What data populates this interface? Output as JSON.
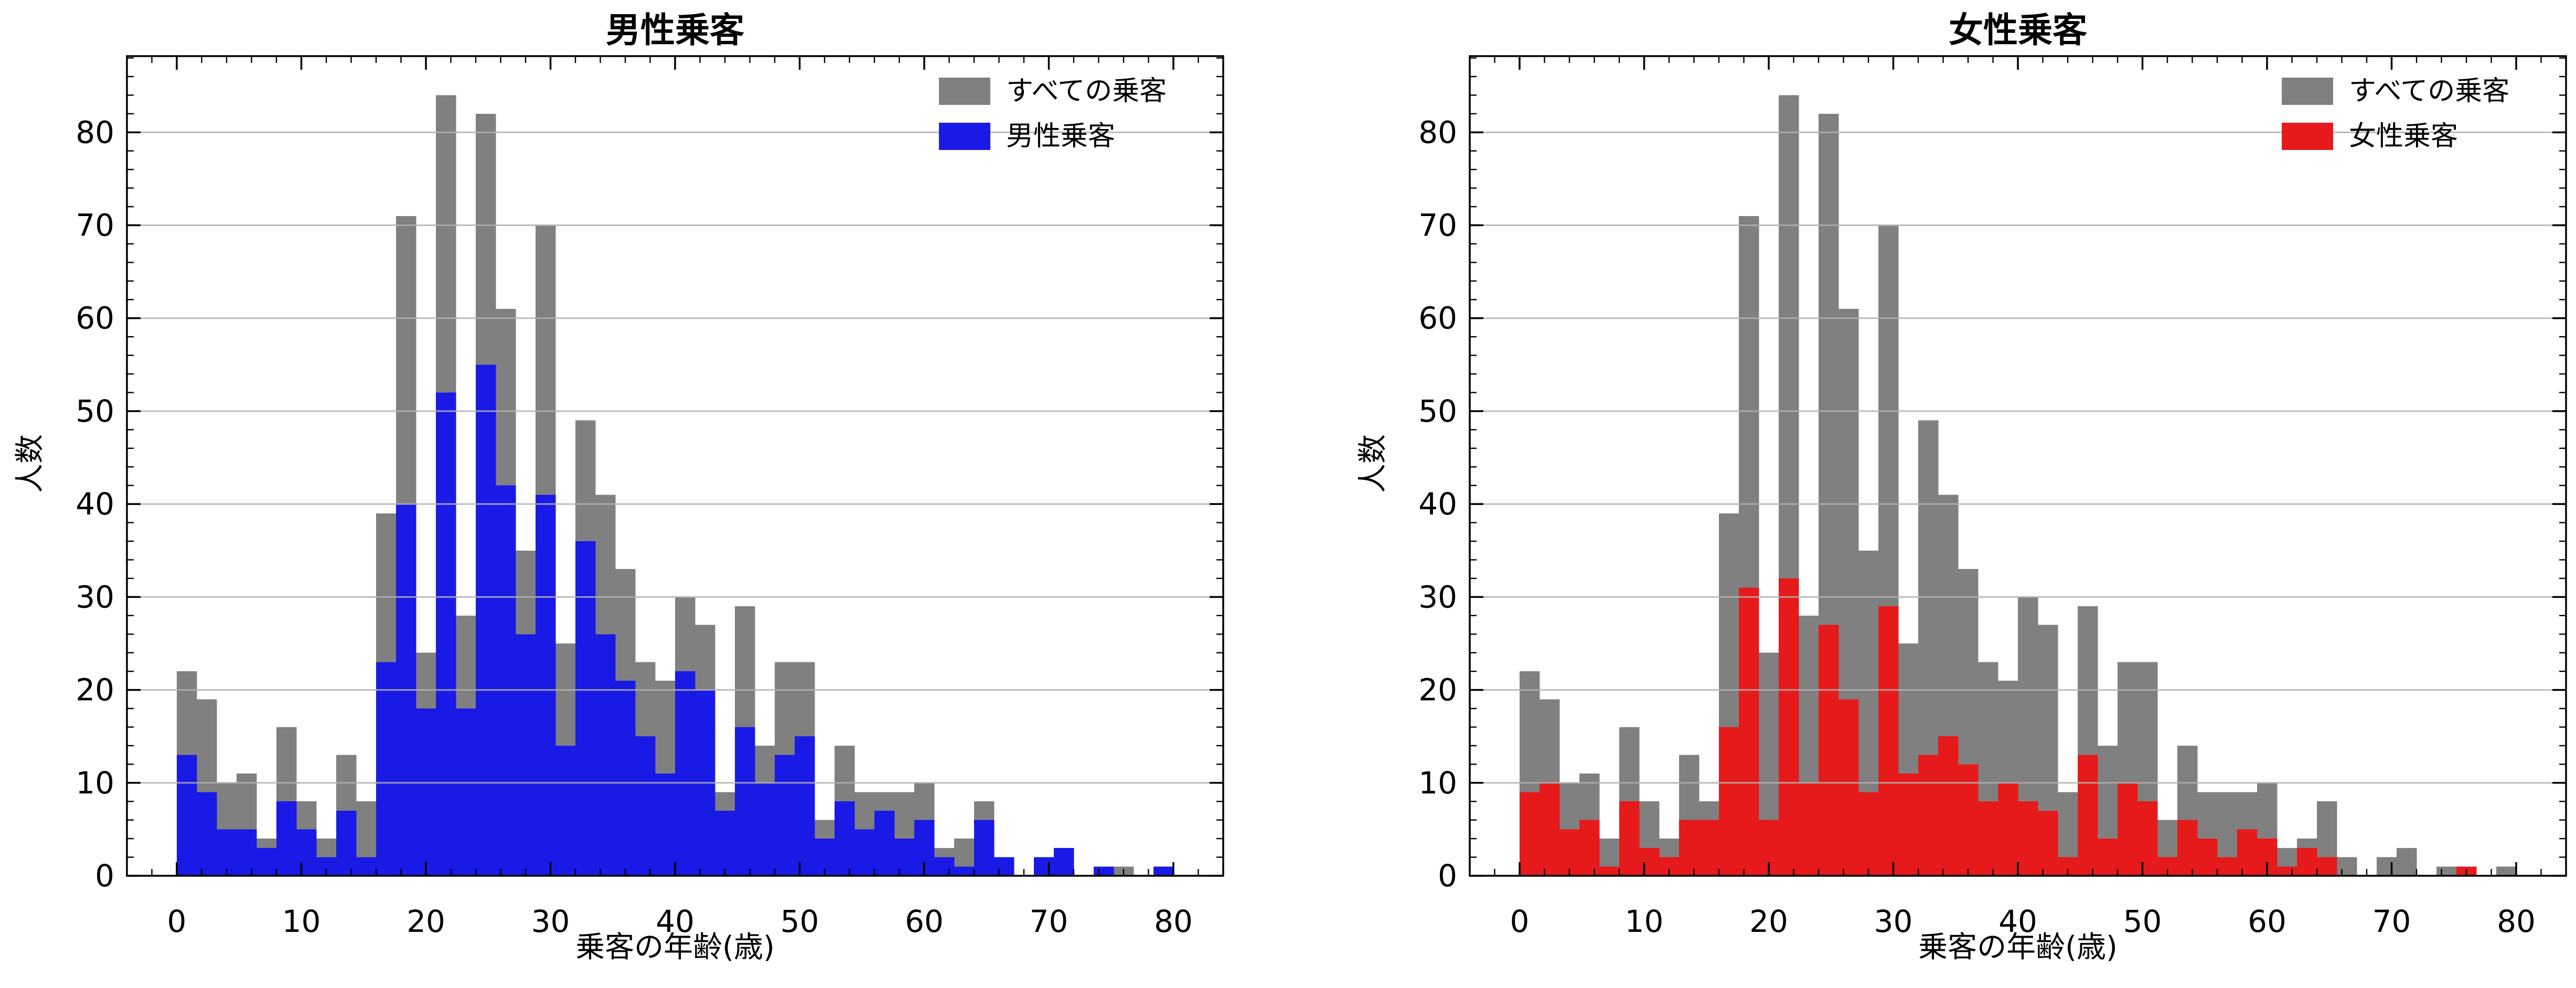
{
  "chart_data": [
    {
      "type": "bar",
      "subtype": "overlaid-histogram",
      "title": "男性乗客",
      "xlabel": "乗客の年齢(歳)",
      "ylabel": "人数",
      "bins": {
        "start": 0,
        "width": 1.6,
        "count": 50
      },
      "xlim": [
        -4,
        84
      ],
      "ylim": [
        0,
        88.2
      ],
      "xticks": [
        0,
        10,
        20,
        30,
        40,
        50,
        60,
        70,
        80
      ],
      "yticks": [
        0,
        10,
        20,
        30,
        40,
        50,
        60,
        70,
        80
      ],
      "minor_tick_step": 2,
      "grid": "horizontal-major-on-top",
      "legend_position": "upper-right",
      "series": [
        {
          "id": "all",
          "label": "すべての乗客",
          "color": "#808080",
          "values": [
            22,
            19,
            10,
            11,
            4,
            16,
            8,
            4,
            13,
            8,
            39,
            71,
            24,
            84,
            28,
            82,
            61,
            35,
            70,
            25,
            49,
            41,
            33,
            23,
            21,
            30,
            27,
            9,
            29,
            14,
            23,
            23,
            6,
            14,
            9,
            9,
            9,
            10,
            3,
            4,
            8,
            2,
            0,
            2,
            3,
            0,
            1,
            1,
            0,
            1
          ]
        },
        {
          "id": "male",
          "label": "男性乗客",
          "color": "#1a1ae6",
          "values": [
            13,
            9,
            5,
            5,
            3,
            8,
            5,
            2,
            7,
            2,
            23,
            40,
            18,
            52,
            18,
            55,
            42,
            26,
            41,
            14,
            36,
            26,
            21,
            15,
            11,
            22,
            20,
            7,
            16,
            10,
            13,
            15,
            4,
            8,
            5,
            7,
            4,
            6,
            2,
            1,
            6,
            2,
            0,
            2,
            3,
            0,
            1,
            0,
            0,
            1
          ]
        }
      ]
    },
    {
      "type": "bar",
      "subtype": "overlaid-histogram",
      "title": "女性乗客",
      "xlabel": "乗客の年齢(歳)",
      "ylabel": "人数",
      "bins": {
        "start": 0,
        "width": 1.6,
        "count": 50
      },
      "xlim": [
        -4,
        84
      ],
      "ylim": [
        0,
        88.2
      ],
      "xticks": [
        0,
        10,
        20,
        30,
        40,
        50,
        60,
        70,
        80
      ],
      "yticks": [
        0,
        10,
        20,
        30,
        40,
        50,
        60,
        70,
        80
      ],
      "minor_tick_step": 2,
      "grid": "horizontal-major-on-top",
      "legend_position": "upper-right",
      "series": [
        {
          "id": "all",
          "label": "すべての乗客",
          "color": "#808080",
          "values": [
            22,
            19,
            10,
            11,
            4,
            16,
            8,
            4,
            13,
            8,
            39,
            71,
            24,
            84,
            28,
            82,
            61,
            35,
            70,
            25,
            49,
            41,
            33,
            23,
            21,
            30,
            27,
            9,
            29,
            14,
            23,
            23,
            6,
            14,
            9,
            9,
            9,
            10,
            3,
            4,
            8,
            2,
            0,
            2,
            3,
            0,
            1,
            1,
            0,
            1
          ]
        },
        {
          "id": "female",
          "label": "女性乗客",
          "color": "#e61a1a",
          "values": [
            9,
            10,
            5,
            6,
            1,
            8,
            3,
            2,
            6,
            6,
            16,
            31,
            6,
            32,
            10,
            27,
            19,
            9,
            29,
            11,
            13,
            15,
            12,
            8,
            10,
            8,
            7,
            2,
            13,
            4,
            10,
            8,
            2,
            6,
            4,
            2,
            5,
            4,
            1,
            3,
            2,
            0,
            0,
            0,
            0,
            0,
            0,
            1,
            0,
            0
          ]
        }
      ]
    }
  ],
  "style": {
    "grid_color": "#b0b0b0",
    "spine_color": "#000000",
    "background": "#ffffff"
  }
}
